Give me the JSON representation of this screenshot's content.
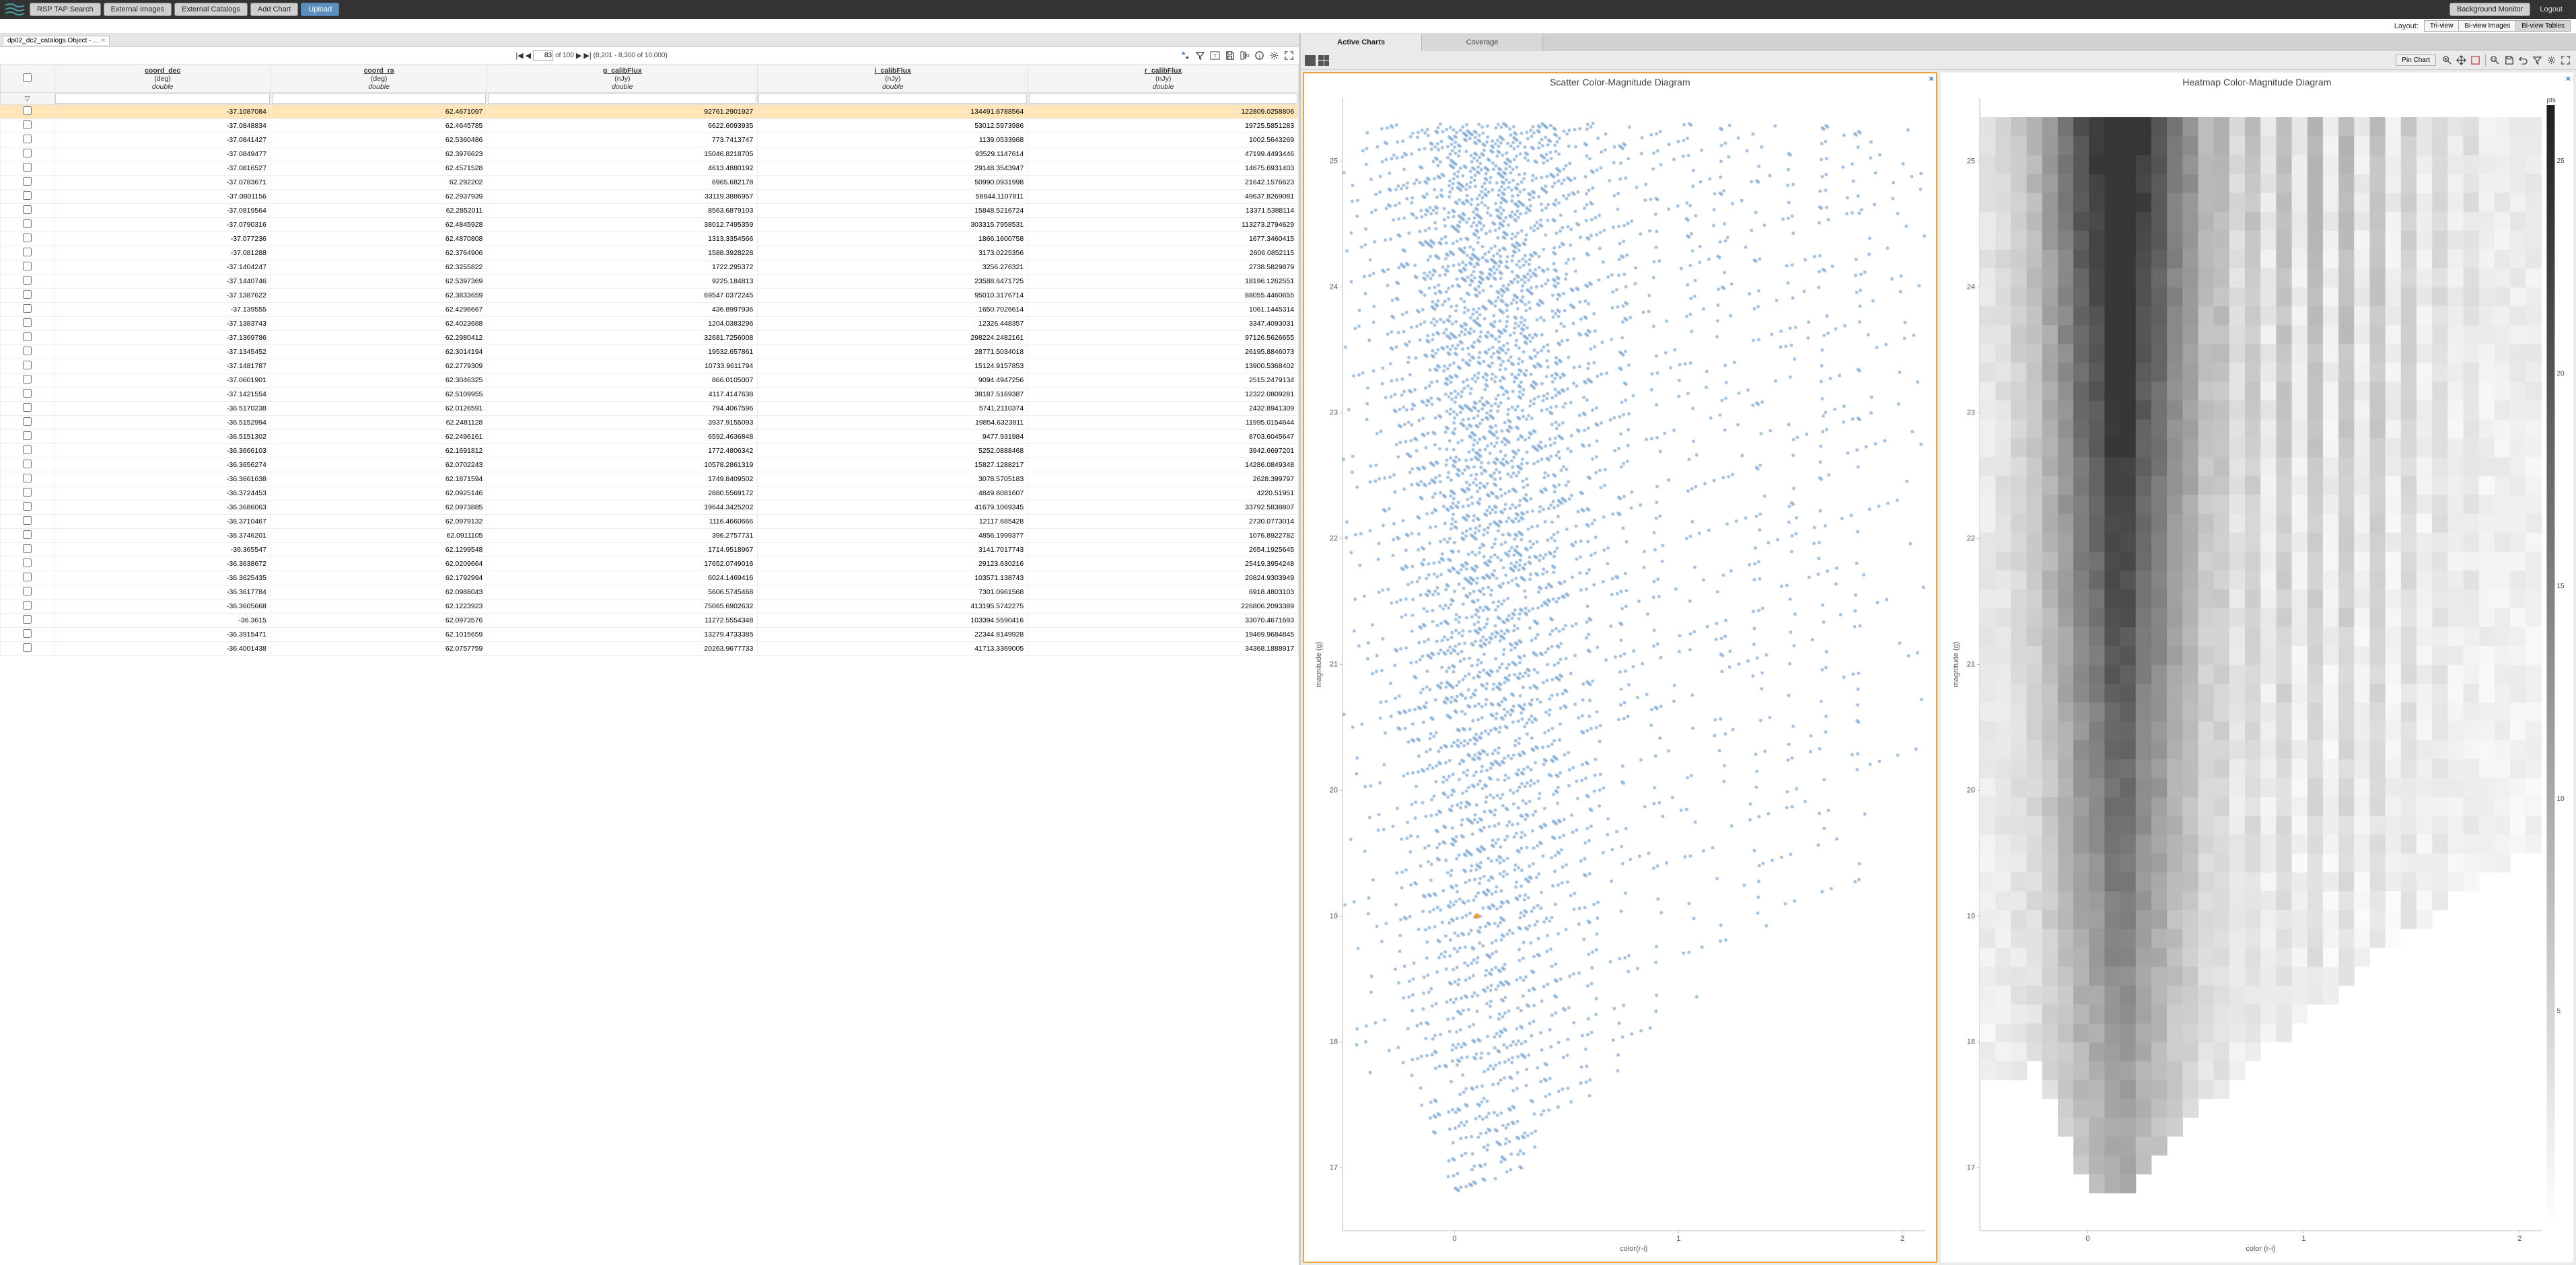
{
  "topbar": {
    "buttons": [
      "RSP TAP Search",
      "External Images",
      "External Catalogs",
      "Add Chart",
      "Upload"
    ],
    "bg_monitor": "Background Monitor",
    "logout": "Logout"
  },
  "layoutbar": {
    "label": "Layout:",
    "options": [
      "Tri-view",
      "Bi-view Images",
      "Bi-view Tables"
    ],
    "active": 2
  },
  "table": {
    "tab_name": "dp02_dc2_catalogs.Object - ...",
    "pager": {
      "page": "83",
      "of": "of 100",
      "range": "(8,201 - 8,300 of 10,000)"
    },
    "columns": [
      {
        "name": "coord_dec",
        "unit": "(deg)",
        "dtype": "double"
      },
      {
        "name": "coord_ra",
        "unit": "(deg)",
        "dtype": "double"
      },
      {
        "name": "g_calibFlux",
        "unit": "(nJy)",
        "dtype": "double"
      },
      {
        "name": "i_calibFlux",
        "unit": "(nJy)",
        "dtype": "double"
      },
      {
        "name": "r_calibFlux",
        "unit": "(nJy)",
        "dtype": "double"
      }
    ],
    "rows": [
      [
        "-37.1087084",
        "62.4671097",
        "92761.2901927",
        "134491.6788564",
        "122809.0258806"
      ],
      [
        "-37.0848834",
        "62.4645785",
        "6622.6093935",
        "53012.5973986",
        "19725.5851283"
      ],
      [
        "-37.0841427",
        "62.5360486",
        "773.7413747",
        "1139.0533968",
        "1002.5643269"
      ],
      [
        "-37.0849477",
        "62.3976623",
        "15046.8218705",
        "93529.1147614",
        "47199.4493446"
      ],
      [
        "-37.0816527",
        "62.4571528",
        "4613.4880192",
        "29148.3543947",
        "14675.6931403"
      ],
      [
        "-37.0783671",
        "62.292202",
        "6965.682178",
        "50990.0931998",
        "21642.1576623"
      ],
      [
        "-37.0801156",
        "62.2937939",
        "33119.3886957",
        "58844.1107811",
        "49637.8269081"
      ],
      [
        "-37.0819564",
        "62.2852011",
        "8563.6879103",
        "15848.5216724",
        "13371.5388114"
      ],
      [
        "-37.0790316",
        "62.4845928",
        "38012.7495359",
        "303315.7958531",
        "113273.2794629"
      ],
      [
        "-37.077236",
        "62.4870808",
        "1313.3354566",
        "1866.1600758",
        "1677.3460415"
      ],
      [
        "-37.081288",
        "62.3764906",
        "1588.3928228",
        "3173.0225356",
        "2606.0852115"
      ],
      [
        "-37.1404247",
        "62.3255822",
        "1722.295372",
        "3256.276321",
        "2738.5829879"
      ],
      [
        "-37.1440746",
        "62.5397369",
        "9225.184813",
        "23588.6471725",
        "18196.1262551"
      ],
      [
        "-37.1387622",
        "62.3833659",
        "69547.0372245",
        "95010.3176714",
        "88055.4460655"
      ],
      [
        "-37.139555",
        "62.4296667",
        "436.8997936",
        "1650.7026614",
        "1061.1445314"
      ],
      [
        "-37.1383743",
        "62.4023688",
        "1204.0383296",
        "12326.448357",
        "3347.4093031"
      ],
      [
        "-37.1369786",
        "62.2980412",
        "32681.7256008",
        "298224.2482161",
        "97126.5626655"
      ],
      [
        "-37.1345452",
        "62.3014194",
        "19532.657861",
        "28771.5034018",
        "26195.8846073"
      ],
      [
        "-37.1481787",
        "62.2779309",
        "10733.9611794",
        "15124.9157853",
        "13900.5368402"
      ],
      [
        "-37.0601901",
        "62.3046325",
        "866.0105007",
        "9094.4947256",
        "2515.2479134"
      ],
      [
        "-37.1421554",
        "62.5109955",
        "4117.4147638",
        "38187.5169387",
        "12322.0809281"
      ],
      [
        "-36.5170238",
        "62.0126591",
        "794.4067596",
        "5741.2110374",
        "2432.8941309"
      ],
      [
        "-36.5152994",
        "62.2481128",
        "3937.9155093",
        "19854.6323811",
        "11995.0154644"
      ],
      [
        "-36.5151302",
        "62.2496161",
        "6592.4636848",
        "9477.931984",
        "8703.6045647"
      ],
      [
        "-36.3666103",
        "62.1691812",
        "1772.4806342",
        "5252.0888468",
        "3942.6697201"
      ],
      [
        "-36.3656274",
        "62.0702243",
        "10578.2861319",
        "15827.1288217",
        "14286.0849348"
      ],
      [
        "-36.3661638",
        "62.1871594",
        "1749.8409502",
        "3078.5705183",
        "2628.399797"
      ],
      [
        "-36.3724453",
        "62.0925146",
        "2880.5569172",
        "4849.8081607",
        "4220.51951"
      ],
      [
        "-36.3686063",
        "62.0973885",
        "19644.3425202",
        "41679.1069345",
        "33792.5838807"
      ],
      [
        "-36.3710467",
        "62.0979132",
        "1116.4660666",
        "12117.685428",
        "2730.0773014"
      ],
      [
        "-36.3746201",
        "62.0911105",
        "396.2757731",
        "4856.1999377",
        "1076.8922782"
      ],
      [
        "-36.365547",
        "62.1299548",
        "1714.9518967",
        "3141.7017743",
        "2654.1925645"
      ],
      [
        "-36.3638672",
        "62.0209664",
        "17652.0749016",
        "29123.630216",
        "25419.3954248"
      ],
      [
        "-36.3625435",
        "62.1792994",
        "6024.1469416",
        "103571.138743",
        "20824.9303949"
      ],
      [
        "-36.3617784",
        "62.0988043",
        "5606.5745468",
        "7301.0961568",
        "6918.4803103"
      ],
      [
        "-36.3605668",
        "62.1223923",
        "75065.6902632",
        "413195.5742275",
        "226806.2093389"
      ],
      [
        "-36.3615",
        "62.0973576",
        "11272.5554348",
        "103394.5590416",
        "33070.4671693"
      ],
      [
        "-36.3915471",
        "62.1015659",
        "13279.4733385",
        "22344.8149928",
        "19469.9684845"
      ],
      [
        "-36.4001438",
        "62.0757759",
        "20263.9677733",
        "41713.3369005",
        "34368.1888917"
      ]
    ],
    "selected_row": 0
  },
  "charts": {
    "tabs": [
      "Active Charts",
      "Coverage"
    ],
    "active_tab": 0,
    "pin_label": "Pin Chart",
    "scatter": {
      "title": "Scatter Color-Magnitude Diagram",
      "xlabel": "color(r-i)",
      "ylabel": "magnitude (g)",
      "xlim": [
        -0.5,
        2.1
      ],
      "ylim": [
        25.5,
        16.5
      ],
      "xticks": [
        0,
        1,
        2
      ],
      "yticks": [
        17,
        18,
        19,
        20,
        21,
        22,
        23,
        24,
        25
      ],
      "point_color": "#5b8fc4",
      "point_size": 2.5,
      "highlight_color": "#f0a030",
      "highlight": {
        "x": 0.1,
        "y": 19.0
      },
      "n_points": 4500,
      "envelope": [
        {
          "x": -0.25,
          "ymin": 17.8,
          "ymax": 25.3
        },
        {
          "x": 0.0,
          "ymin": 16.8,
          "ymax": 25.3
        },
        {
          "x": 0.2,
          "ymin": 16.8,
          "ymax": 25.3
        },
        {
          "x": 0.5,
          "ymin": 17.4,
          "ymax": 25.3
        },
        {
          "x": 1.0,
          "ymin": 18.2,
          "ymax": 25.3
        },
        {
          "x": 1.5,
          "ymin": 18.9,
          "ymax": 25.3
        },
        {
          "x": 1.9,
          "ymin": 19.4,
          "ymax": 25.3
        }
      ],
      "bands": [
        0.0,
        0.1,
        0.2,
        0.3,
        0.45,
        0.6,
        0.75,
        0.9,
        1.05,
        1.2,
        1.35,
        1.5,
        1.65,
        1.8
      ]
    },
    "heatmap": {
      "title": "Heatmap Color-Magnitude Diagram",
      "xlabel": "color (r-i)",
      "ylabel": "magnitude (g)",
      "cbar_label": "pts",
      "xlim": [
        -0.5,
        2.1
      ],
      "ylim": [
        25.5,
        16.5
      ],
      "xticks": [
        0,
        1,
        2
      ],
      "yticks": [
        17,
        18,
        19,
        20,
        21,
        22,
        23,
        24,
        25
      ],
      "cbar_ticks": [
        5,
        10,
        15,
        20,
        25
      ],
      "nx": 36,
      "ny": 60,
      "color_low": "#ffffff",
      "color_high": "#202020"
    }
  },
  "colors": {
    "topbar_bg": "#333333",
    "accent": "#5a8fc0",
    "chart_border_active": "#e9a33a",
    "row_selected": "#ffe5b8"
  }
}
